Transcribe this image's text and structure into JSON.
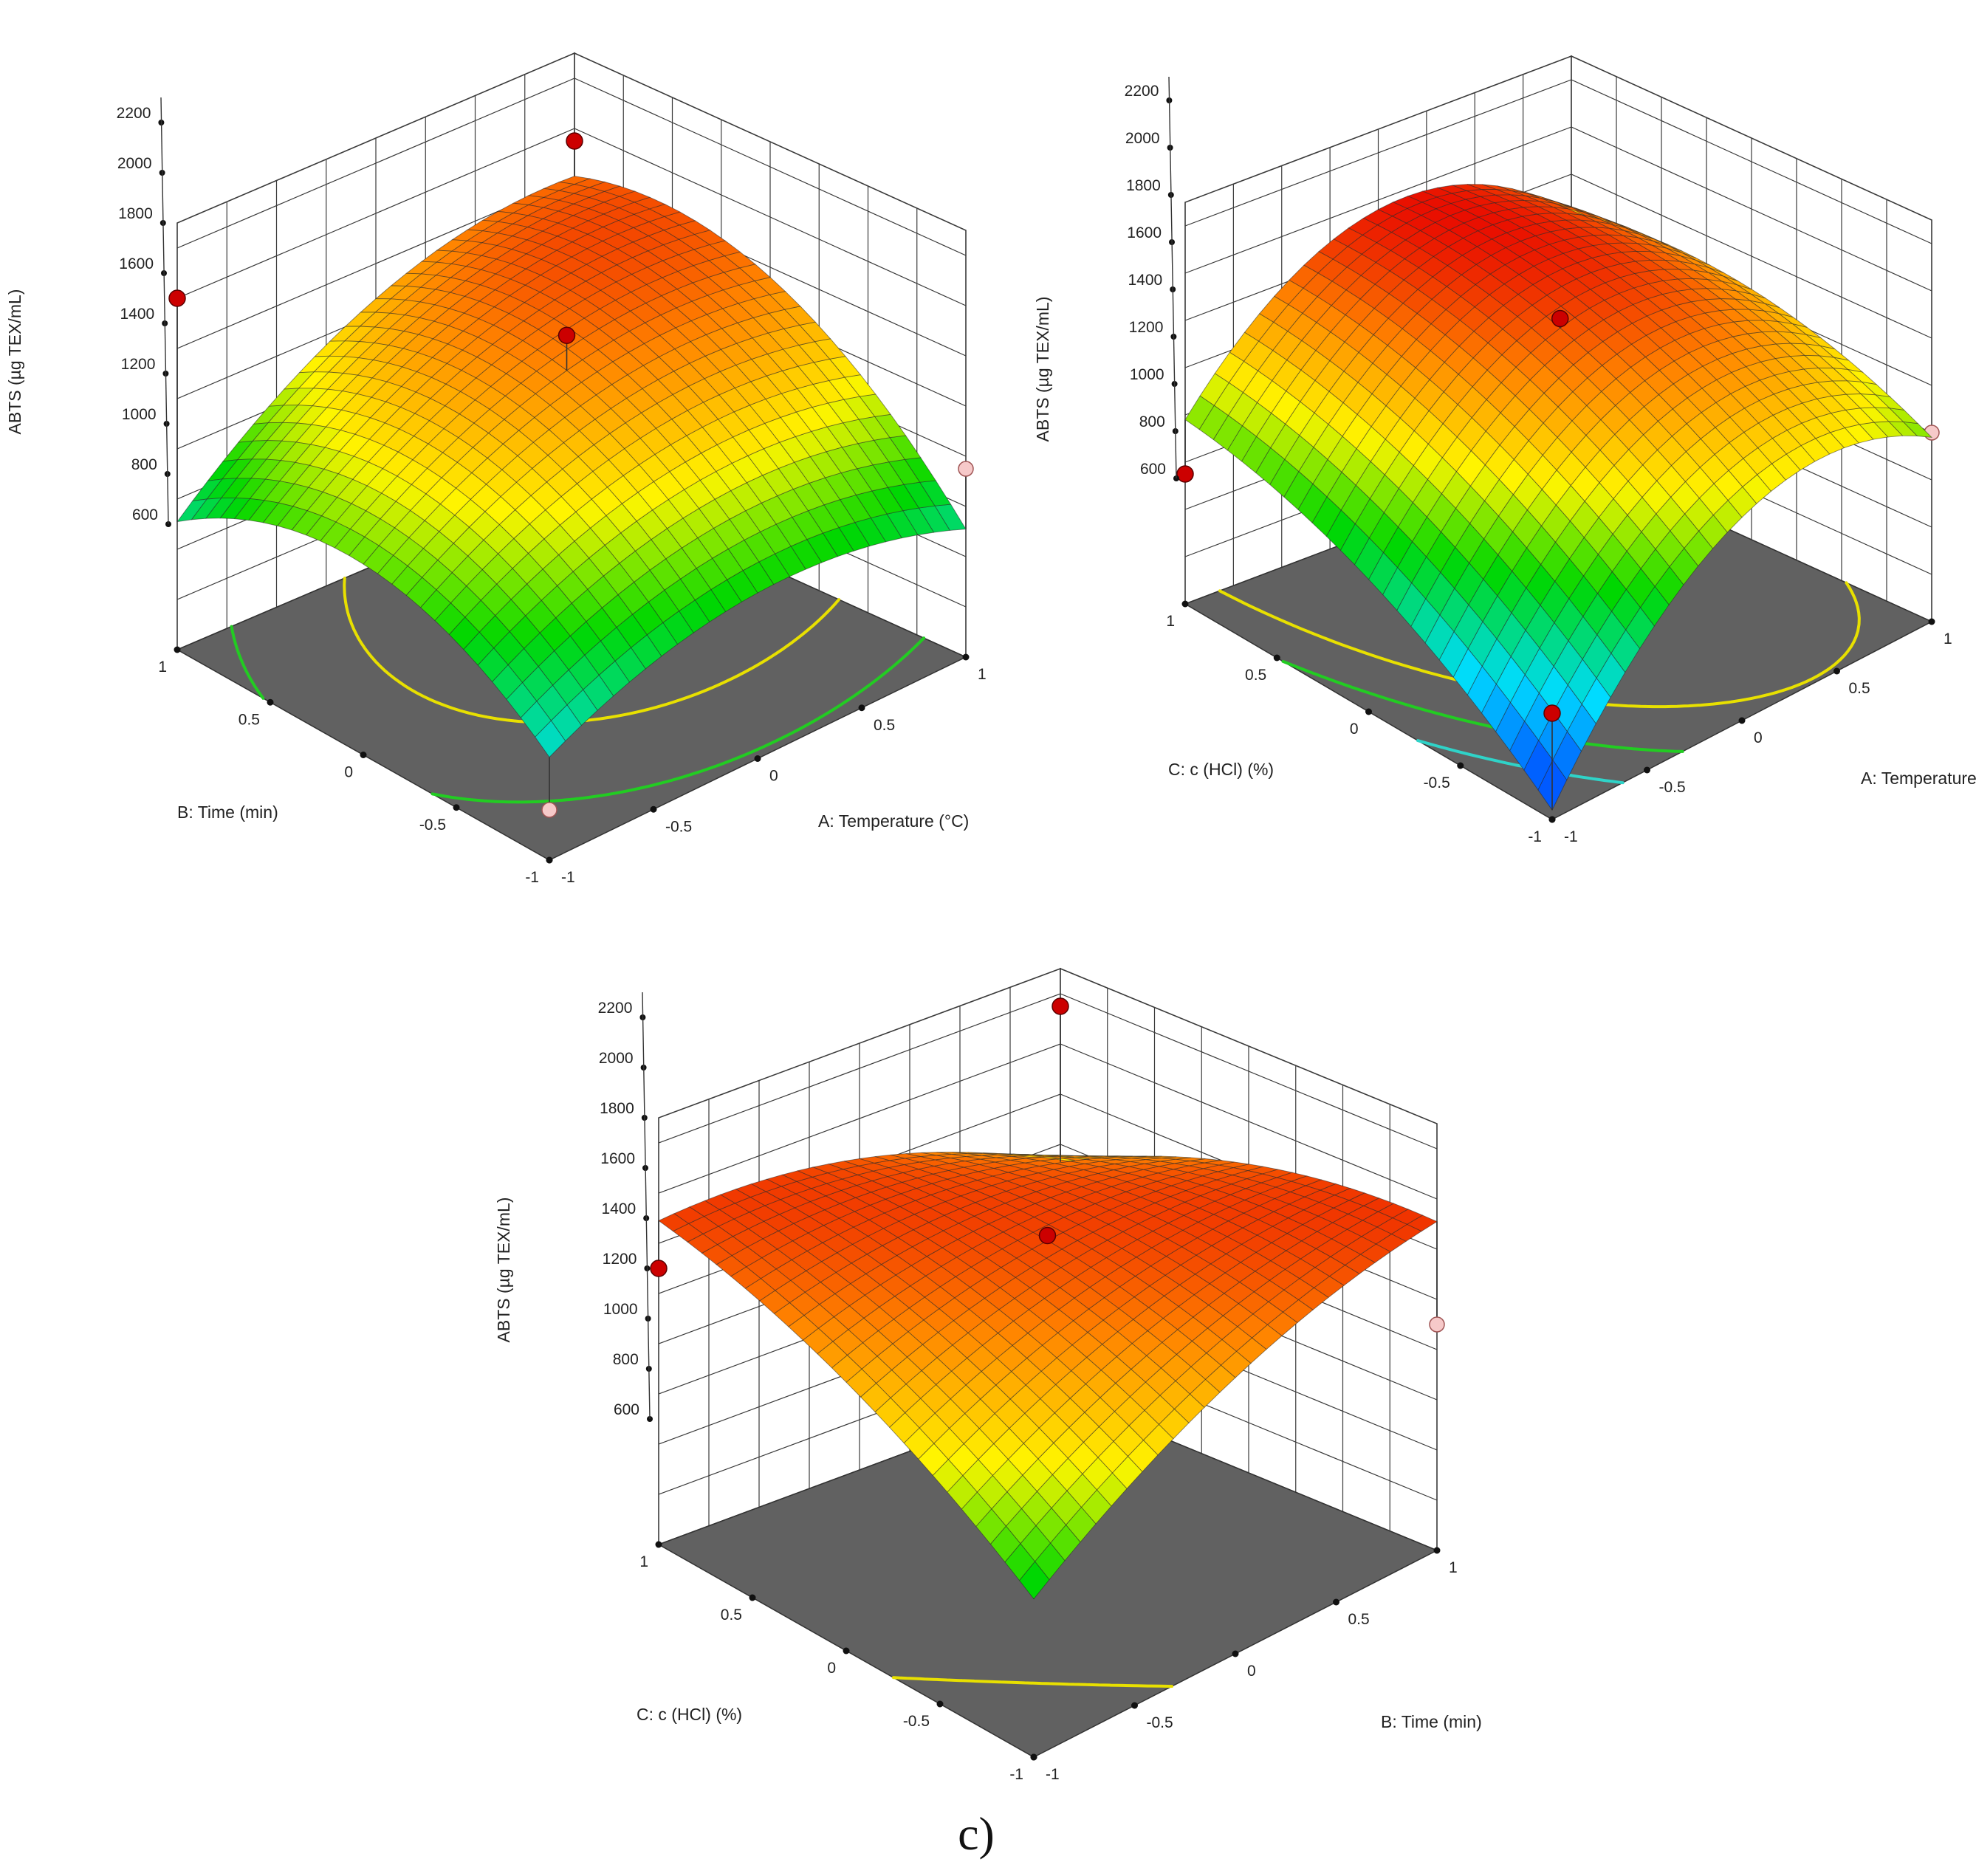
{
  "figure": {
    "caption": "c)"
  },
  "colors": {
    "floor": "#616161",
    "grid": "#3a3a3a",
    "point_high": "#cc0000",
    "point_low": "#f6c9c9",
    "contour_red": "#ff3b1a",
    "contour_yellow": "#e8e000",
    "contour_green": "#22cc22",
    "contour_cyan": "#2fd3c8"
  },
  "chart_data": [
    {
      "type": "surface3d",
      "response_label": "ABTS (µg TEX/mL)",
      "zlim": [
        600,
        2200
      ],
      "z_ticks": [
        "600",
        "800",
        "1000",
        "1200",
        "1400",
        "1600",
        "1800",
        "2000",
        "2200"
      ],
      "x_label": "A: Temperature (°C)",
      "y_label": "B: Time (min)",
      "x_ticks": [
        "-1",
        "-0.5",
        "0",
        "0.5",
        "1"
      ],
      "y_ticks": [
        "-1",
        "-0.5",
        "0",
        "0.5",
        "1"
      ],
      "model": {
        "b0": 1760,
        "bx": 200,
        "by": 200,
        "bxx": -200,
        "byy": -300,
        "bxy": 150
      },
      "design_points": [
        {
          "x": 0,
          "y": 0,
          "z": 1900,
          "above_surface": true
        },
        {
          "x": 1,
          "y": 1,
          "z": 1950,
          "above_surface": true
        },
        {
          "x": -1,
          "y": 1,
          "z": 2000,
          "above_surface": true
        },
        {
          "x": -1,
          "y": -1,
          "z": 800,
          "above_surface": false
        },
        {
          "x": 1,
          "y": -1,
          "z": 1350,
          "above_surface": false
        }
      ],
      "contours": [
        {
          "level": 1000,
          "color": "#2fd3c8"
        },
        {
          "level": 1300,
          "color": "#22cc22"
        },
        {
          "level": 1600,
          "color": "#e8e000"
        },
        {
          "level": 1850,
          "color": "#ff3b1a"
        }
      ]
    },
    {
      "type": "surface3d",
      "response_label": "ABTS (µg TEX/mL)",
      "zlim": [
        600,
        2200
      ],
      "z_ticks": [
        "600",
        "800",
        "1000",
        "1200",
        "1400",
        "1600",
        "1800",
        "2000",
        "2200"
      ],
      "x_label": "A: Temperature (°C)",
      "y_label": "C: c (HCl) (%)",
      "x_ticks": [
        "-1",
        "-0.5",
        "0",
        "0.5",
        "1"
      ],
      "y_ticks": [
        "-1",
        "-0.5",
        "0",
        "0.5",
        "1"
      ],
      "model": {
        "b0": 1860,
        "bx": 250,
        "by": 250,
        "bxx": -450,
        "byy": -150,
        "bxy": -120
      },
      "design_points": [
        {
          "x": 0,
          "y": 0,
          "z": 1900,
          "above_surface": true
        },
        {
          "x": -1,
          "y": -1,
          "z": 1050,
          "above_surface": true
        },
        {
          "x": -1,
          "y": 1,
          "z": 1150,
          "above_surface": true
        },
        {
          "x": 1,
          "y": -1,
          "z": 1400,
          "above_surface": false
        }
      ],
      "contours": [
        {
          "level": 1050,
          "color": "#2fd3c8"
        },
        {
          "level": 1300,
          "color": "#22cc22"
        },
        {
          "level": 1550,
          "color": "#e8e000"
        },
        {
          "level": 1950,
          "color": "#ff3b1a"
        }
      ]
    },
    {
      "type": "surface3d",
      "response_label": "ABTS (µg TEX/mL)",
      "zlim": [
        600,
        2200
      ],
      "z_ticks": [
        "600",
        "800",
        "1000",
        "1200",
        "1400",
        "1600",
        "1800",
        "2000",
        "2200"
      ],
      "x_label": "B: Time (min)",
      "y_label": "C: c (HCl) (%)",
      "x_ticks": [
        "-1",
        "-0.5",
        "0",
        "0.5",
        "1"
      ],
      "y_ticks": [
        "-1",
        "-0.5",
        "0",
        "0.5",
        "1"
      ],
      "model": {
        "b0": 1880,
        "bx": 80,
        "by": 70,
        "bxx": -130,
        "byy": -110,
        "bxy": -260
      },
      "design_points": [
        {
          "x": 0,
          "y": 0,
          "z": 1900,
          "above_surface": true
        },
        {
          "x": 1,
          "y": 1,
          "z": 2150,
          "above_surface": true
        },
        {
          "x": -1,
          "y": 1,
          "z": 1700,
          "above_surface": true
        },
        {
          "x": 1,
          "y": -1,
          "z": 1500,
          "above_surface": false
        },
        {
          "x": -1,
          "y": -1,
          "z": 1380,
          "above_surface": false
        }
      ],
      "contours": [
        {
          "level": 1580,
          "color": "#e8e000"
        }
      ]
    }
  ]
}
